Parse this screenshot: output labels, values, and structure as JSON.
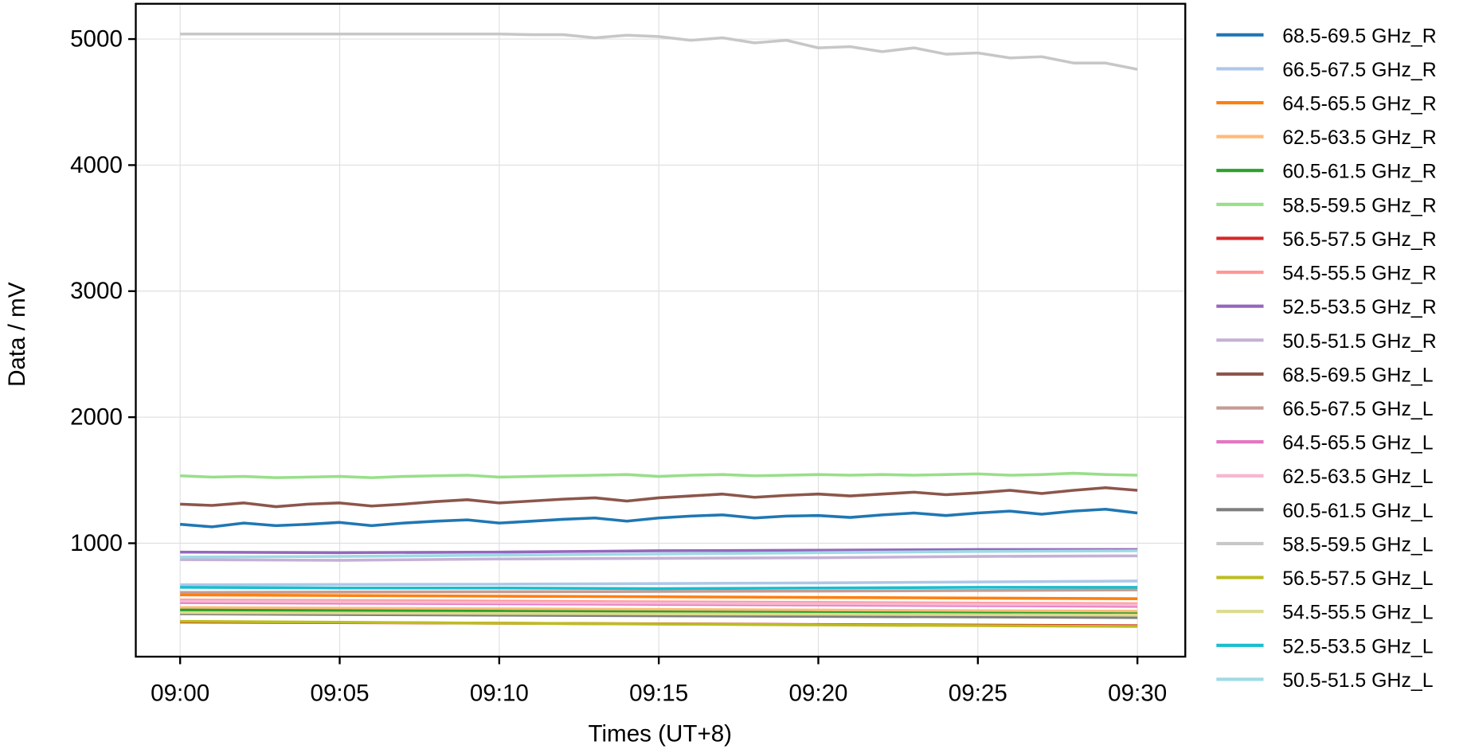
{
  "chart_data": {
    "type": "line",
    "title": "",
    "xlabel": "Times (UT+8)",
    "ylabel": "Data / mV",
    "xlim": [
      "08:58.6",
      "09:31.5"
    ],
    "ylim": [
      100,
      5280
    ],
    "x_ticks": [
      "09:00",
      "09:05",
      "09:10",
      "09:15",
      "09:20",
      "09:25",
      "09:30"
    ],
    "y_ticks": [
      1000,
      2000,
      3000,
      4000,
      5000
    ],
    "grid": true,
    "legend_position": "outside-right",
    "series": [
      {
        "name": "68.5-69.5 GHz_R",
        "color": "#1f77b4",
        "minutes": [
          0,
          1,
          2,
          3,
          4,
          5,
          6,
          7,
          8,
          9,
          10,
          11,
          12,
          13,
          14,
          15,
          16,
          17,
          18,
          19,
          20,
          21,
          22,
          23,
          24,
          25,
          26,
          27,
          28,
          29,
          30
        ],
        "values": [
          1150,
          1130,
          1160,
          1140,
          1150,
          1165,
          1140,
          1160,
          1175,
          1185,
          1160,
          1175,
          1190,
          1200,
          1175,
          1200,
          1215,
          1225,
          1200,
          1215,
          1220,
          1205,
          1225,
          1240,
          1220,
          1240,
          1255,
          1230,
          1255,
          1270,
          1240
        ]
      },
      {
        "name": "66.5-67.5 GHz_R",
        "color": "#aec7e8",
        "minutes": [
          0,
          10,
          20,
          30
        ],
        "values": [
          670,
          675,
          685,
          700
        ]
      },
      {
        "name": "64.5-65.5 GHz_R",
        "color": "#ff7f0e",
        "minutes": [
          0,
          10,
          20,
          30
        ],
        "values": [
          590,
          580,
          570,
          560
        ]
      },
      {
        "name": "62.5-63.5 GHz_R",
        "color": "#ffbb78",
        "minutes": [
          0,
          10,
          20,
          30
        ],
        "values": [
          490,
          480,
          470,
          460
        ]
      },
      {
        "name": "60.5-61.5 GHz_R",
        "color": "#2ca02c",
        "minutes": [
          0,
          10,
          20,
          30
        ],
        "values": [
          470,
          460,
          450,
          440
        ]
      },
      {
        "name": "58.5-59.5 GHz_R",
        "color": "#98df8a",
        "minutes": [
          0,
          1,
          2,
          3,
          4,
          5,
          6,
          7,
          8,
          9,
          10,
          11,
          12,
          13,
          14,
          15,
          16,
          17,
          18,
          19,
          20,
          21,
          22,
          23,
          24,
          25,
          26,
          27,
          28,
          29,
          30
        ],
        "values": [
          1535,
          1525,
          1530,
          1520,
          1525,
          1530,
          1520,
          1530,
          1535,
          1540,
          1525,
          1530,
          1535,
          1540,
          1545,
          1530,
          1540,
          1545,
          1535,
          1540,
          1545,
          1540,
          1545,
          1540,
          1545,
          1550,
          1540,
          1545,
          1555,
          1545,
          1540
        ]
      },
      {
        "name": "56.5-57.5 GHz_R",
        "color": "#d62728",
        "minutes": [
          0,
          10,
          20,
          30
        ],
        "values": [
          375,
          365,
          355,
          345
        ]
      },
      {
        "name": "54.5-55.5 GHz_R",
        "color": "#ff9896",
        "minutes": [
          0,
          10,
          20,
          30
        ],
        "values": [
          550,
          540,
          530,
          520
        ]
      },
      {
        "name": "52.5-53.5 GHz_R",
        "color": "#9467bd",
        "minutes": [
          0,
          5,
          10,
          15,
          20,
          25,
          30
        ],
        "values": [
          930,
          925,
          930,
          940,
          945,
          950,
          950
        ]
      },
      {
        "name": "50.5-51.5 GHz_R",
        "color": "#c5b0d5",
        "minutes": [
          0,
          5,
          10,
          15,
          20,
          25,
          30
        ],
        "values": [
          870,
          865,
          875,
          880,
          885,
          895,
          900
        ]
      },
      {
        "name": "68.5-69.5 GHz_L",
        "color": "#8c564b",
        "minutes": [
          0,
          1,
          2,
          3,
          4,
          5,
          6,
          7,
          8,
          9,
          10,
          11,
          12,
          13,
          14,
          15,
          16,
          17,
          18,
          19,
          20,
          21,
          22,
          23,
          24,
          25,
          26,
          27,
          28,
          29,
          30
        ],
        "values": [
          1310,
          1300,
          1320,
          1290,
          1310,
          1320,
          1295,
          1310,
          1330,
          1345,
          1320,
          1335,
          1350,
          1360,
          1335,
          1360,
          1375,
          1390,
          1365,
          1380,
          1390,
          1375,
          1390,
          1405,
          1385,
          1400,
          1420,
          1395,
          1420,
          1440,
          1420
        ]
      },
      {
        "name": "66.5-67.5 GHz_L",
        "color": "#c49c94",
        "minutes": [
          0,
          10,
          20,
          30
        ],
        "values": [
          610,
          615,
          620,
          630
        ]
      },
      {
        "name": "64.5-65.5 GHz_L",
        "color": "#e377c2",
        "minutes": [
          0,
          10,
          20,
          30
        ],
        "values": [
          530,
          520,
          510,
          500
        ]
      },
      {
        "name": "62.5-63.5 GHz_L",
        "color": "#f7b6d2",
        "minutes": [
          0,
          10,
          20,
          30
        ],
        "values": [
          540,
          530,
          520,
          510
        ]
      },
      {
        "name": "60.5-61.5 GHz_L",
        "color": "#7f7f7f",
        "minutes": [
          0,
          10,
          20,
          30
        ],
        "values": [
          440,
          430,
          420,
          410
        ]
      },
      {
        "name": "58.5-59.5 GHz_L",
        "color": "#c7c7c7",
        "minutes": [
          0,
          1,
          2,
          3,
          4,
          5,
          6,
          7,
          8,
          9,
          10,
          11,
          12,
          13,
          14,
          15,
          16,
          17,
          18,
          19,
          20,
          21,
          22,
          23,
          24,
          25,
          26,
          27,
          28,
          29,
          30
        ],
        "values": [
          5040,
          5040,
          5040,
          5040,
          5040,
          5040,
          5040,
          5040,
          5040,
          5040,
          5040,
          5035,
          5035,
          5010,
          5030,
          5020,
          4990,
          5010,
          4970,
          4990,
          4930,
          4940,
          4900,
          4930,
          4880,
          4890,
          4850,
          4860,
          4810,
          4810,
          4760
        ]
      },
      {
        "name": "56.5-57.5 GHz_L",
        "color": "#bcbd22",
        "minutes": [
          0,
          10,
          20,
          30
        ],
        "values": [
          380,
          365,
          352,
          340
        ]
      },
      {
        "name": "54.5-55.5 GHz_L",
        "color": "#dbdb8d",
        "minutes": [
          0,
          10,
          20,
          30
        ],
        "values": [
          450,
          443,
          437,
          430
        ]
      },
      {
        "name": "52.5-53.5 GHz_L",
        "color": "#17becf",
        "minutes": [
          0,
          5,
          10,
          15,
          20,
          25,
          30
        ],
        "values": [
          650,
          645,
          645,
          640,
          645,
          650,
          650
        ]
      },
      {
        "name": "50.5-51.5 GHz_L",
        "color": "#9edae5",
        "minutes": [
          0,
          5,
          10,
          15,
          20,
          25,
          30
        ],
        "values": [
          890,
          895,
          905,
          915,
          925,
          935,
          940
        ]
      }
    ]
  }
}
